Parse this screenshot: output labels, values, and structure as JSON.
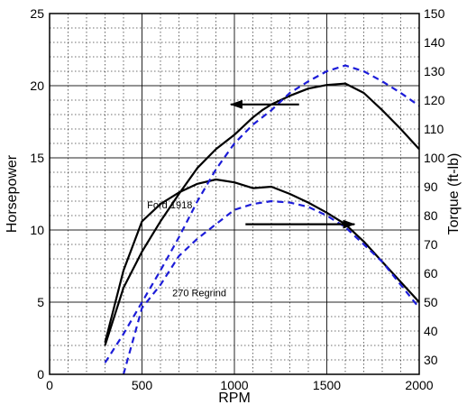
{
  "chart_data": {
    "type": "line",
    "title": "",
    "xlabel": "RPM",
    "ylabel": "Horsepower",
    "y2label": "Torque (ft-lb)",
    "xlim": [
      0,
      2000
    ],
    "ylim": [
      0,
      25
    ],
    "y2lim": [
      25,
      150
    ],
    "xticks": [
      0,
      500,
      1000,
      1500,
      2000
    ],
    "yticks": [
      0,
      5,
      10,
      15,
      20,
      25
    ],
    "y2ticks": [
      30,
      40,
      50,
      60,
      70,
      80,
      90,
      100,
      110,
      120,
      130,
      140,
      150
    ],
    "grid": true,
    "grid_style": "dotted minor grid every 100 RPM and 1 hp, solid major grid every 500 RPM and 5 hp",
    "legend": "none",
    "series": [
      {
        "group": "Ford 1918",
        "quantity": "horsepower",
        "axis": "left",
        "color": "#000000",
        "dash": false,
        "x": [
          300,
          400,
          500,
          600,
          700,
          800,
          900,
          1000,
          1100,
          1150,
          1200,
          1300,
          1400,
          1500,
          1600,
          1700,
          1800,
          1900,
          2000
        ],
        "values": [
          2.0,
          6.0,
          8.5,
          10.6,
          12.5,
          14.3,
          15.6,
          16.6,
          17.8,
          18.3,
          18.7,
          19.3,
          19.8,
          20.05,
          20.15,
          19.5,
          18.3,
          17.0,
          15.6
        ]
      },
      {
        "group": "Ford 1918",
        "quantity": "torque",
        "axis": "right",
        "color": "#000000",
        "dash": false,
        "x": [
          300,
          400,
          500,
          600,
          700,
          800,
          900,
          1000,
          1100,
          1200,
          1300,
          1400,
          1500,
          1600,
          1700,
          1800,
          1900,
          2000
        ],
        "values": [
          36,
          61,
          78,
          84,
          88,
          91,
          92.5,
          91.5,
          89.5,
          90,
          87.5,
          84.5,
          81,
          77,
          71,
          64,
          57,
          50
        ]
      },
      {
        "group": "270 Regrind",
        "quantity": "horsepower",
        "axis": "left",
        "color": "#1c1cd8",
        "dash": true,
        "x": [
          300,
          400,
          500,
          600,
          700,
          800,
          900,
          1000,
          1100,
          1200,
          1300,
          1400,
          1500,
          1600,
          1700,
          1800,
          1900,
          2000
        ],
        "values": [
          0.8,
          2.8,
          5.0,
          7.2,
          9.5,
          12.0,
          14.2,
          16.0,
          17.3,
          18.3,
          19.5,
          20.3,
          21.0,
          21.4,
          21.0,
          20.3,
          19.5,
          18.6
        ]
      },
      {
        "group": "270 Regrind",
        "quantity": "torque",
        "axis": "right",
        "color": "#1c1cd8",
        "dash": true,
        "x": [
          400,
          500,
          600,
          700,
          800,
          900,
          1000,
          1100,
          1200,
          1300,
          1400,
          1500,
          1600,
          1700,
          1800,
          1900,
          2000
        ],
        "values": [
          25,
          48,
          56,
          66,
          72,
          77,
          82,
          84,
          85,
          84.5,
          83,
          80,
          76,
          70,
          64,
          56,
          48
        ]
      }
    ],
    "annotations": [
      {
        "text": "Ford 1918",
        "x": 650,
        "y": 11.5,
        "axis": "left"
      },
      {
        "text": "270 Regrind",
        "x": 810,
        "y": 5.4,
        "axis": "left"
      }
    ],
    "arrows": [
      {
        "from_x": 1350,
        "to_x": 980,
        "y": 18.7,
        "axis": "left",
        "points_to": "left"
      },
      {
        "from_x": 1060,
        "to_x": 1650,
        "y": 10.4,
        "axis": "left",
        "points_to": "right"
      }
    ]
  }
}
